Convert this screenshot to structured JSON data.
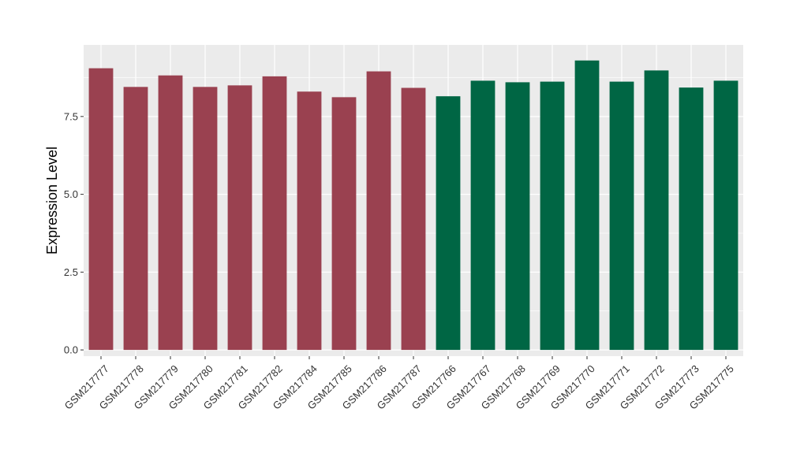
{
  "chart_data": {
    "type": "bar",
    "title": "",
    "xlabel": "",
    "ylabel": "Expression Level",
    "ylim": [
      -0.2,
      9.8
    ],
    "yticks": [
      0.0,
      2.5,
      5.0,
      7.5
    ],
    "ytick_labels": [
      "0.0",
      "2.5",
      "5.0",
      "7.5"
    ],
    "grid": true,
    "legend": "none",
    "categories": [
      "GSM217777",
      "GSM217778",
      "GSM217779",
      "GSM217780",
      "GSM217781",
      "GSM217782",
      "GSM217784",
      "GSM217785",
      "GSM217786",
      "GSM217787",
      "GSM217766",
      "GSM217767",
      "GSM217768",
      "GSM217769",
      "GSM217770",
      "GSM217771",
      "GSM217772",
      "GSM217773",
      "GSM217775"
    ],
    "values": [
      9.05,
      8.45,
      8.82,
      8.45,
      8.5,
      8.79,
      8.3,
      8.12,
      8.95,
      8.42,
      8.15,
      8.65,
      8.6,
      8.62,
      9.3,
      8.62,
      8.98,
      8.43,
      8.65
    ],
    "bar_colors": [
      "#9a4150",
      "#9a4150",
      "#9a4150",
      "#9a4150",
      "#9a4150",
      "#9a4150",
      "#9a4150",
      "#9a4150",
      "#9a4150",
      "#9a4150",
      "#006644",
      "#006644",
      "#006644",
      "#006644",
      "#006644",
      "#006644",
      "#006644",
      "#006644",
      "#006644"
    ],
    "panel_background": "#ebebeb",
    "grid_color": "#ffffff"
  }
}
